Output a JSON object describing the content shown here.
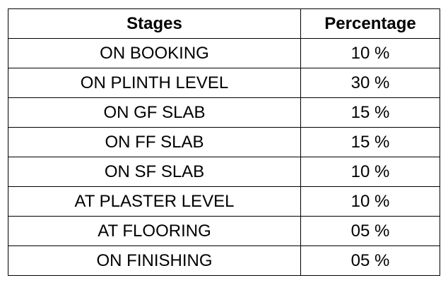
{
  "table": {
    "headers": {
      "stage": "Stages",
      "percentage": "Percentage"
    },
    "rows": [
      {
        "stage": "ON BOOKING",
        "percentage": "10 %"
      },
      {
        "stage": "ON PLINTH LEVEL",
        "percentage": "30 %"
      },
      {
        "stage": "ON GF SLAB",
        "percentage": "15 %"
      },
      {
        "stage": "ON FF SLAB",
        "percentage": "15 %"
      },
      {
        "stage": "ON SF SLAB",
        "percentage": "10 %"
      },
      {
        "stage": "AT PLASTER LEVEL",
        "percentage": "10 %"
      },
      {
        "stage": "AT FLOORING",
        "percentage": "05 %"
      },
      {
        "stage": "ON FINISHING",
        "percentage": "05 %"
      }
    ]
  }
}
